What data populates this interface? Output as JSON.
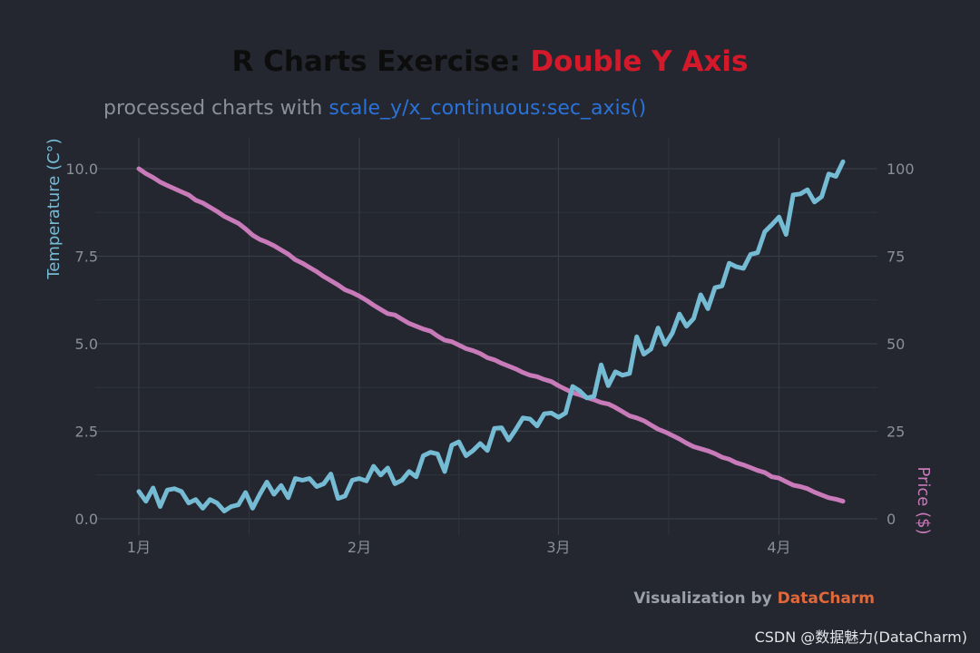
{
  "colors": {
    "background": "#242730",
    "title": "#0d0d0d",
    "title_accent": "#d4192b",
    "subtitle": "#8a8f98",
    "subtitle_accent": "#2a72d8",
    "temperature": "#74bbd3",
    "price": "#c97ab9",
    "grid_major": "#383c45",
    "grid_minor": "#2f333c",
    "tick": "#8a8f98",
    "caption": "#9aa0a8",
    "caption_accent": "#e0683a"
  },
  "header": {
    "title_main": "R Charts Exercise: ",
    "title_accent": "Double Y Axis",
    "subtitle_main": "processed charts with ",
    "subtitle_accent": "scale_y/x_continuous:sec_axis()"
  },
  "caption": {
    "prefix": "Visualization by ",
    "brand": "DataCharm"
  },
  "watermark": "CSDN @数据魅力(DataCharm)",
  "chart_data": {
    "type": "line",
    "xlabel": "",
    "ylabel": "Temperature (C°)",
    "y2label": "Price ($)",
    "x_unit": "day",
    "x_tick_days": [
      1,
      32,
      60,
      91
    ],
    "x_tick_labels": [
      "1月",
      "2月",
      "3月",
      "4月"
    ],
    "xlim_days": [
      1,
      100
    ],
    "ylim": [
      0,
      10
    ],
    "y_ticks": [
      "0.0",
      "2.5",
      "5.0",
      "7.5",
      "10.0"
    ],
    "y2lim": [
      0,
      100
    ],
    "y2_ticks": [
      "0",
      "25",
      "50",
      "75",
      "100"
    ],
    "grid": true,
    "series": [
      {
        "name": "Temperature (C°)",
        "axis": "left",
        "color": "#74bbd3",
        "values": [
          0.78,
          0.5,
          0.88,
          0.35,
          0.82,
          0.86,
          0.78,
          0.45,
          0.55,
          0.3,
          0.55,
          0.45,
          0.22,
          0.35,
          0.4,
          0.75,
          0.3,
          0.7,
          1.05,
          0.7,
          0.95,
          0.6,
          1.15,
          1.1,
          1.15,
          0.92,
          1.0,
          1.28,
          0.58,
          0.65,
          1.1,
          1.15,
          1.08,
          1.5,
          1.25,
          1.45,
          1.0,
          1.1,
          1.35,
          1.2,
          1.8,
          1.9,
          1.85,
          1.35,
          2.1,
          2.2,
          1.8,
          1.95,
          2.15,
          1.95,
          2.58,
          2.6,
          2.25,
          2.55,
          2.88,
          2.85,
          2.65,
          3.0,
          3.02,
          2.9,
          3.02,
          3.78,
          3.65,
          3.45,
          3.5,
          4.4,
          3.8,
          4.2,
          4.1,
          4.15,
          5.2,
          4.7,
          4.85,
          5.45,
          4.98,
          5.3,
          5.85,
          5.5,
          5.72,
          6.4,
          6.0,
          6.6,
          6.65,
          7.3,
          7.2,
          7.15,
          7.55,
          7.6,
          8.2,
          8.4,
          8.62,
          8.12,
          9.25,
          9.28,
          9.4,
          9.05,
          9.2,
          9.85,
          9.78,
          10.2
        ]
      },
      {
        "name": "Price ($)",
        "axis": "right",
        "color": "#c97ab9",
        "values": [
          100,
          98.6,
          97.5,
          96.2,
          95.2,
          94.3,
          93.4,
          92.5,
          91.0,
          90.2,
          89.0,
          87.8,
          86.4,
          85.4,
          84.4,
          82.8,
          81.0,
          79.8,
          79.0,
          78.0,
          76.8,
          75.6,
          74.0,
          73.0,
          71.8,
          70.6,
          69.2,
          68.0,
          66.8,
          65.4,
          64.6,
          63.6,
          62.4,
          61.0,
          59.8,
          58.6,
          58.2,
          57.0,
          55.8,
          55.0,
          54.2,
          53.6,
          52.2,
          51.0,
          50.6,
          49.6,
          48.6,
          48.0,
          47.2,
          46.0,
          45.4,
          44.4,
          43.6,
          42.8,
          41.8,
          41.0,
          40.6,
          39.8,
          39.2,
          38.0,
          37.0,
          36.0,
          35.4,
          34.6,
          34.0,
          33.2,
          32.8,
          31.8,
          30.6,
          29.4,
          28.8,
          28.0,
          26.8,
          25.6,
          24.8,
          23.8,
          22.8,
          21.6,
          20.6,
          20.0,
          19.4,
          18.6,
          17.6,
          17.0,
          16.0,
          15.4,
          14.6,
          13.8,
          13.2,
          12.0,
          11.6,
          10.6,
          9.6,
          9.2,
          8.6,
          7.6,
          6.8,
          6.0,
          5.6,
          5.0
        ]
      }
    ]
  }
}
